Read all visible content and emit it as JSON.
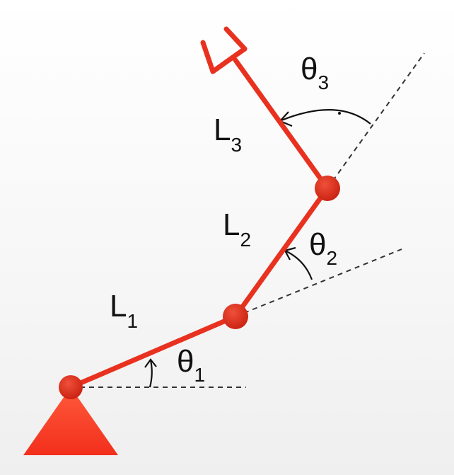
{
  "colors": {
    "arm": "#e8321f",
    "joint": "#dd2a1a",
    "base_top": "#ff5a3c",
    "base_bottom": "#f22f1c",
    "reference_line": "#333333",
    "text": "#111111"
  },
  "labels": {
    "link1": {
      "main": "L",
      "sub": "1"
    },
    "link2": {
      "main": "L",
      "sub": "2"
    },
    "link3": {
      "main": "L",
      "sub": "3"
    },
    "theta1": {
      "main": "θ",
      "sub": "1"
    },
    "theta2": {
      "main": "θ",
      "sub": "2"
    },
    "theta3": {
      "main": "θ",
      "sub": "3"
    }
  },
  "icons": {
    "base": "triangle-base-icon",
    "gripper": "gripper-icon"
  }
}
